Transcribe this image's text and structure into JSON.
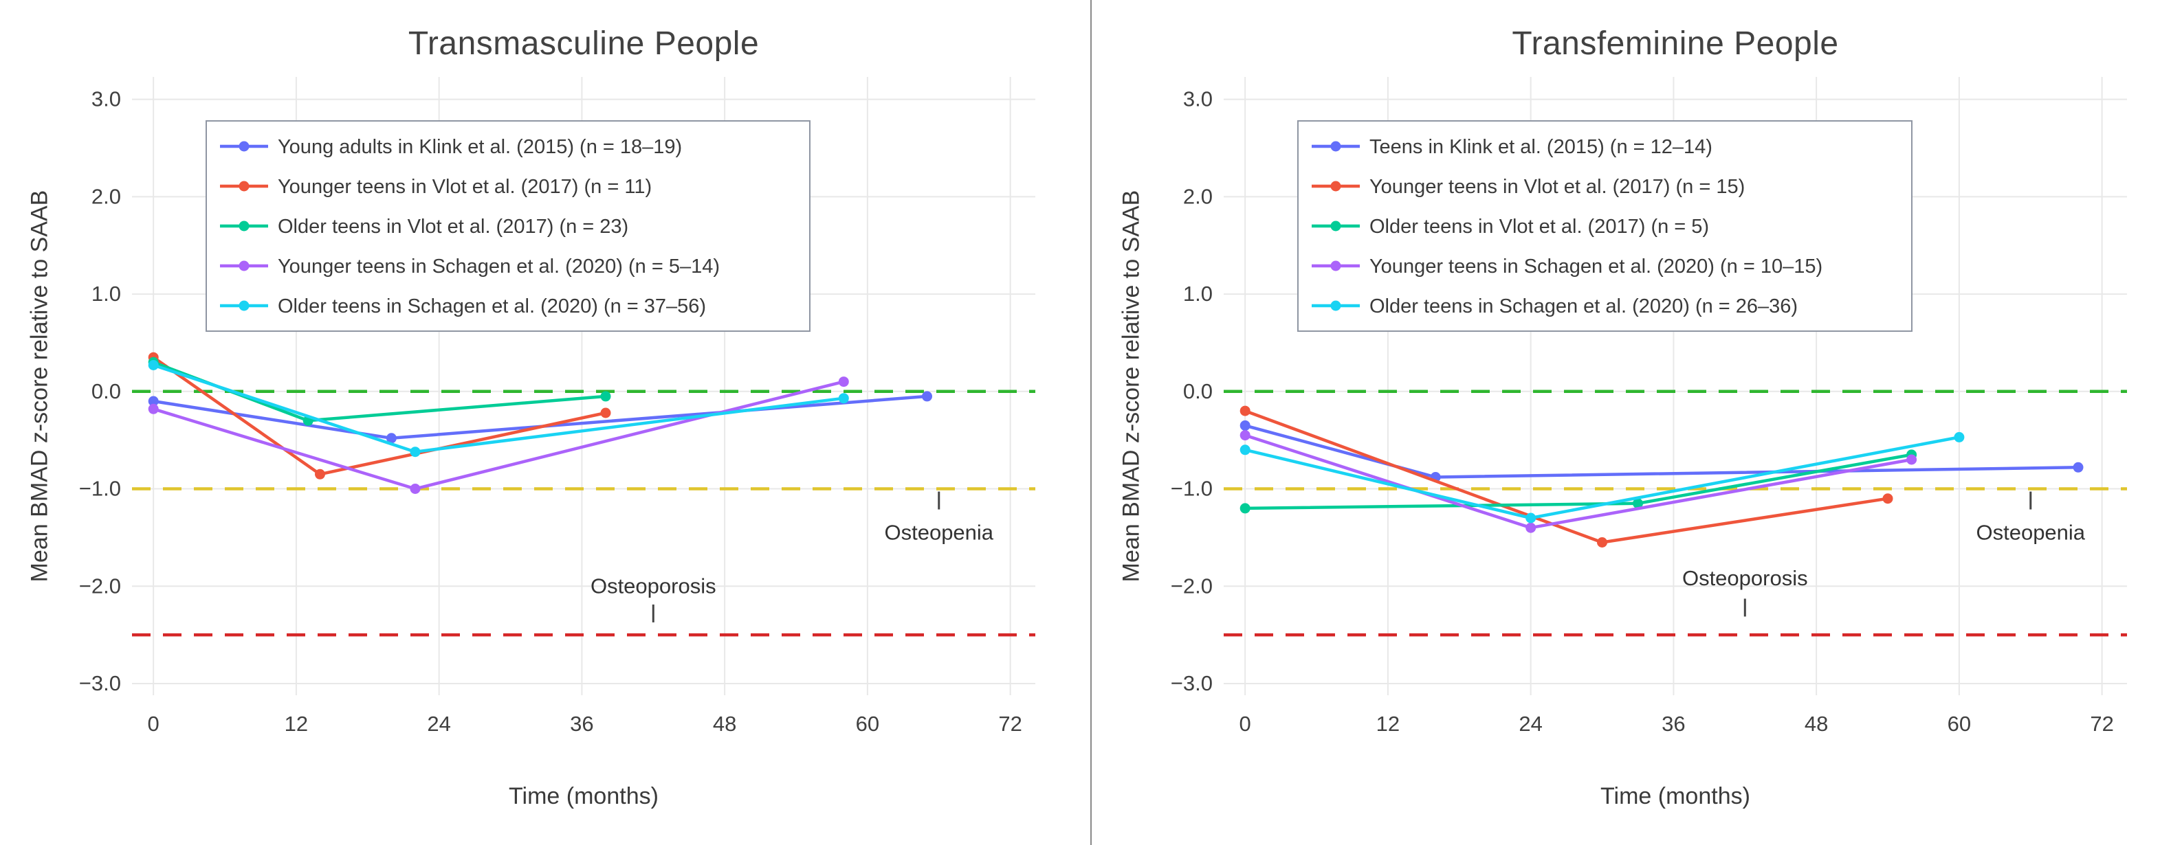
{
  "page": {
    "background": "#ffffff",
    "divider_color": "#8a8a8a"
  },
  "chart_data": [
    {
      "type": "line",
      "title": "Transmasculine People",
      "xlabel": "Time (months)",
      "ylabel": "Mean BMAD z-score relative to SAAB",
      "xlim": [
        -1.8,
        74.1
      ],
      "ylim": [
        -3.12,
        3.23
      ],
      "grid": true,
      "grid_color": "#e8e8e8",
      "legend_position": "top-left",
      "xticks": [
        {
          "v": 0,
          "label": "0"
        },
        {
          "v": 12,
          "label": "12"
        },
        {
          "v": 24,
          "label": "24"
        },
        {
          "v": 36,
          "label": "36"
        },
        {
          "v": 48,
          "label": "48"
        },
        {
          "v": 60,
          "label": "60"
        },
        {
          "v": 72,
          "label": "72"
        }
      ],
      "yticks": [
        {
          "v": 3,
          "label": "3.0"
        },
        {
          "v": 2,
          "label": "2.0"
        },
        {
          "v": 1,
          "label": "1.0"
        },
        {
          "v": 0,
          "label": "0.0"
        },
        {
          "v": -1,
          "label": "−1.0"
        },
        {
          "v": -2,
          "label": "−2.0"
        },
        {
          "v": -3,
          "label": "−3.0"
        }
      ],
      "reference_lines": [
        {
          "y": 0,
          "color": "#2fb62f",
          "style": "dashed",
          "meaning": "normal"
        },
        {
          "y": -1.0,
          "color": "#e0c52e",
          "style": "dashed",
          "meaning": "osteopenia threshold"
        },
        {
          "y": -2.5,
          "color": "#d62728",
          "style": "dashed",
          "meaning": "osteoporosis threshold"
        }
      ],
      "annotations": [
        {
          "text": "Osteoporosis",
          "x": 42,
          "y": -2.0,
          "tick_y": -2.28
        },
        {
          "text": "Osteopenia",
          "x": 66,
          "y": -1.45,
          "tick_y": -1.12
        }
      ],
      "series": [
        {
          "name": "Young adults in Klink et al. (2015) (n = 18–19)",
          "color": "#636EFA",
          "x": [
            0,
            20,
            65
          ],
          "y": [
            -0.1,
            -0.48,
            -0.05
          ]
        },
        {
          "name": "Younger teens in Vlot et al. (2017) (n = 11)",
          "color": "#EF553B",
          "x": [
            0,
            14,
            38
          ],
          "y": [
            0.35,
            -0.85,
            -0.22
          ]
        },
        {
          "name": "Older teens in Vlot et al. (2017) (n = 23)",
          "color": "#00CC96",
          "x": [
            0,
            13,
            38
          ],
          "y": [
            0.3,
            -0.3,
            -0.05
          ]
        },
        {
          "name": "Younger teens in Schagen et al. (2020) (n = 5–14)",
          "color": "#AB63FA",
          "x": [
            0,
            22,
            58
          ],
          "y": [
            -0.18,
            -1.0,
            0.1
          ]
        },
        {
          "name": "Older teens in Schagen et al. (2020) (n = 37–56)",
          "color": "#19D3F3",
          "x": [
            0,
            22,
            58
          ],
          "y": [
            0.27,
            -0.62,
            -0.07
          ]
        }
      ]
    },
    {
      "type": "line",
      "title": "Transfeminine People",
      "xlabel": "Time (months)",
      "ylabel": "Mean BMAD z-score relative to SAAB",
      "xlim": [
        -1.8,
        74.1
      ],
      "ylim": [
        -3.12,
        3.23
      ],
      "grid": true,
      "grid_color": "#e8e8e8",
      "legend_position": "top-left",
      "xticks": [
        {
          "v": 0,
          "label": "0"
        },
        {
          "v": 12,
          "label": "12"
        },
        {
          "v": 24,
          "label": "24"
        },
        {
          "v": 36,
          "label": "36"
        },
        {
          "v": 48,
          "label": "48"
        },
        {
          "v": 60,
          "label": "60"
        },
        {
          "v": 72,
          "label": "72"
        }
      ],
      "yticks": [
        {
          "v": 3,
          "label": "3.0"
        },
        {
          "v": 2,
          "label": "2.0"
        },
        {
          "v": 1,
          "label": "1.0"
        },
        {
          "v": 0,
          "label": "0.0"
        },
        {
          "v": -1,
          "label": "−1.0"
        },
        {
          "v": -2,
          "label": "−2.0"
        },
        {
          "v": -3,
          "label": "−3.0"
        }
      ],
      "reference_lines": [
        {
          "y": 0,
          "color": "#2fb62f",
          "style": "dashed",
          "meaning": "normal"
        },
        {
          "y": -1.0,
          "color": "#e0c52e",
          "style": "dashed",
          "meaning": "osteopenia threshold"
        },
        {
          "y": -2.5,
          "color": "#d62728",
          "style": "dashed",
          "meaning": "osteoporosis threshold"
        }
      ],
      "annotations": [
        {
          "text": "Osteoporosis",
          "x": 42,
          "y": -1.92,
          "tick_y": -2.22
        },
        {
          "text": "Osteopenia",
          "x": 66,
          "y": -1.45,
          "tick_y": -1.12
        }
      ],
      "series": [
        {
          "name": "Teens in Klink et al. (2015) (n = 12–14)",
          "color": "#636EFA",
          "x": [
            0,
            16,
            70
          ],
          "y": [
            -0.35,
            -0.88,
            -0.78
          ]
        },
        {
          "name": "Younger teens in Vlot et al. (2017) (n = 15)",
          "color": "#EF553B",
          "x": [
            0,
            30,
            54
          ],
          "y": [
            -0.2,
            -1.55,
            -1.1
          ]
        },
        {
          "name": "Older teens in Vlot et al. (2017) (n = 5)",
          "color": "#00CC96",
          "x": [
            0,
            33,
            56
          ],
          "y": [
            -1.2,
            -1.15,
            -0.65
          ]
        },
        {
          "name": "Younger teens in Schagen et al. (2020) (n = 10–15)",
          "color": "#AB63FA",
          "x": [
            0,
            24,
            56
          ],
          "y": [
            -0.45,
            -1.4,
            -0.7
          ]
        },
        {
          "name": "Older teens in Schagen et al. (2020) (n = 26–36)",
          "color": "#19D3F3",
          "x": [
            0,
            24,
            60
          ],
          "y": [
            -0.6,
            -1.3,
            -0.47
          ]
        }
      ]
    }
  ]
}
